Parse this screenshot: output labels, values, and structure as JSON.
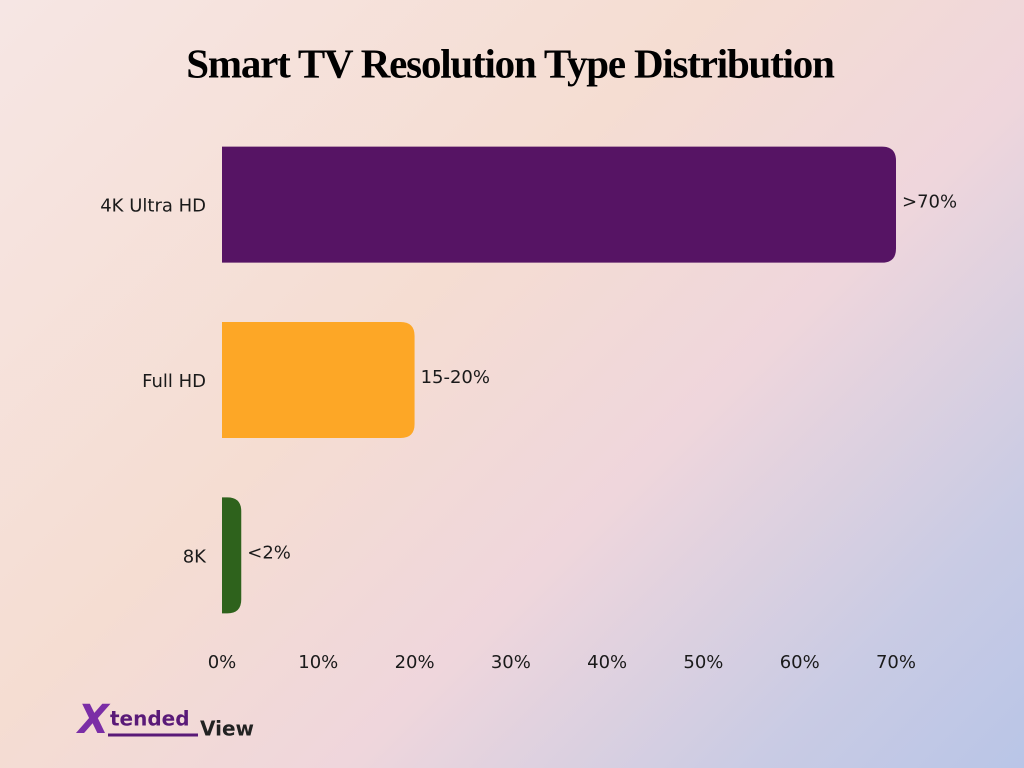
{
  "chart_data": {
    "type": "bar",
    "orientation": "horizontal",
    "title": "Smart TV Resolution Type Distribution",
    "categories": [
      "4K Ultra HD",
      "Full HD",
      "8K"
    ],
    "values": [
      70,
      20,
      2
    ],
    "value_labels": [
      ">70%",
      "15-20%",
      "<2%"
    ],
    "colors": [
      "#561464",
      "#fda726",
      "#2e621c"
    ],
    "xlim": [
      0,
      70
    ],
    "xticks": [
      {
        "value": 0,
        "label": "0%"
      },
      {
        "value": 10,
        "label": "10%"
      },
      {
        "value": 20,
        "label": "20%"
      },
      {
        "value": 30,
        "label": "30%"
      },
      {
        "value": 40,
        "label": "40%"
      },
      {
        "value": 50,
        "label": "50%"
      },
      {
        "value": 60,
        "label": "60%"
      },
      {
        "value": 70,
        "label": "70%"
      }
    ],
    "grid": false
  },
  "logo": {
    "mark": "X",
    "name": "tended",
    "suffix": "View"
  }
}
